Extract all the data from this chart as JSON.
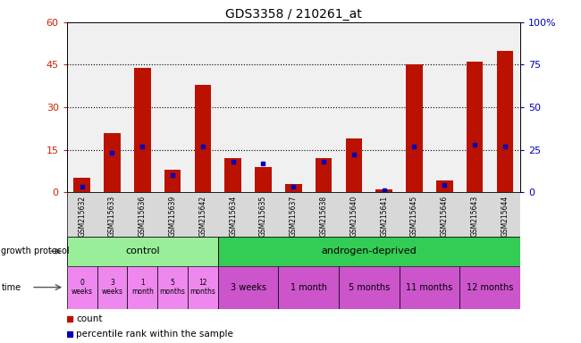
{
  "title": "GDS3358 / 210261_at",
  "samples": [
    "GSM215632",
    "GSM215633",
    "GSM215636",
    "GSM215639",
    "GSM215642",
    "GSM215634",
    "GSM215635",
    "GSM215637",
    "GSM215638",
    "GSM215640",
    "GSM215641",
    "GSM215645",
    "GSM215646",
    "GSM215643",
    "GSM215644"
  ],
  "count_values": [
    5,
    21,
    44,
    8,
    38,
    12,
    9,
    3,
    12,
    19,
    1,
    45,
    4,
    46,
    50
  ],
  "percentile_values": [
    3,
    23,
    27,
    10,
    27,
    18,
    17,
    3,
    18,
    22,
    1,
    27,
    4,
    28,
    27
  ],
  "ylim_left": [
    0,
    60
  ],
  "ylim_right": [
    0,
    100
  ],
  "yticks_left": [
    0,
    15,
    30,
    45,
    60
  ],
  "yticks_right": [
    0,
    25,
    50,
    75,
    100
  ],
  "bar_color": "#bb1100",
  "percentile_color": "#0000bb",
  "bg_color": "#ffffff",
  "plot_bg": "#f0f0f0",
  "xticklabel_bg": "#d8d8d8",
  "control_color": "#99ee99",
  "androgen_color": "#33cc55",
  "ctrl_time_color": "#ee88ee",
  "andro_time_color": "#cc55cc",
  "control_label": "control",
  "androgen_label": "androgen-deprived",
  "ctrl_time_labels": [
    "0\nweeks",
    "3\nweeks",
    "1\nmonth",
    "5\nmonths",
    "12\nmonths"
  ],
  "andro_time_labels": [
    "3 weeks",
    "1 month",
    "5 months",
    "11 months",
    "12 months"
  ],
  "n_ctrl_bars": 5,
  "n_andro_bars": 10,
  "legend_count_label": "count",
  "legend_percentile_label": "percentile rank within the sample",
  "left_axis_color": "#cc2200",
  "right_axis_color": "#0000bb",
  "gp_label": "growth protocol",
  "time_label": "time"
}
